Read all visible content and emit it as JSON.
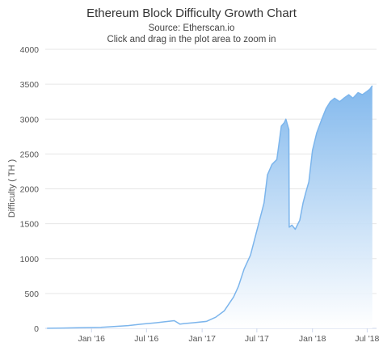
{
  "chart_data": {
    "type": "area",
    "title": "Ethereum Block Difficulty Growth Chart",
    "subtitle_source": "Source: Etherscan.io",
    "subtitle_hint": "Click and drag in the plot area to zoom in",
    "ylabel": "Difficulty ( TH )",
    "xlabel": "",
    "ylim": [
      0,
      4000
    ],
    "yticks": [
      "0",
      "500",
      "1000",
      "1500",
      "2000",
      "2500",
      "3000",
      "3500",
      "4000"
    ],
    "ytick_values": [
      0,
      500,
      1000,
      1500,
      2000,
      2500,
      3000,
      3500,
      4000
    ],
    "xlim": [
      "2015-08-01",
      "2018-08-01"
    ],
    "xticks": [
      "Jan '16",
      "Jul '16",
      "Jan '17",
      "Jul '17",
      "Jan '18",
      "Jul '18"
    ],
    "xtick_dates": [
      "2016-01-01",
      "2016-07-01",
      "2017-01-01",
      "2017-07-01",
      "2018-01-01",
      "2018-07-01"
    ],
    "grid": "horizontal",
    "legend": "none",
    "line_color": "#7cb5ec",
    "fill_top_color": "#7cb5ec",
    "fill_bottom_color": "#ffffff",
    "series": [
      {
        "x": [
          "2015-08-07",
          "2015-10-01",
          "2015-12-01",
          "2016-02-01",
          "2016-03-15",
          "2016-05-01",
          "2016-06-15",
          "2016-08-01",
          "2016-09-01",
          "2016-10-01",
          "2016-10-20",
          "2016-11-05",
          "2016-12-01",
          "2017-01-15",
          "2017-02-15",
          "2017-03-15",
          "2017-04-15",
          "2017-05-01",
          "2017-05-20",
          "2017-06-10",
          "2017-06-25",
          "2017-07-10",
          "2017-07-25",
          "2017-08-05",
          "2017-08-20",
          "2017-09-05",
          "2017-09-20",
          "2017-09-30",
          "2017-10-05",
          "2017-10-15",
          "2017-10-16",
          "2017-10-25",
          "2017-11-05",
          "2017-11-20",
          "2017-12-01",
          "2017-12-10",
          "2017-12-20",
          "2018-01-01",
          "2018-01-15",
          "2018-02-01",
          "2018-02-15",
          "2018-03-01",
          "2018-03-15",
          "2018-04-01",
          "2018-04-15",
          "2018-05-01",
          "2018-05-15",
          "2018-06-01",
          "2018-06-15",
          "2018-07-01",
          "2018-07-10",
          "2018-07-18"
        ],
        "y": [
          1,
          5,
          10,
          15,
          25,
          40,
          60,
          80,
          95,
          110,
          60,
          70,
          80,
          100,
          160,
          250,
          450,
          600,
          850,
          1050,
          1300,
          1550,
          1800,
          2200,
          2350,
          2420,
          2900,
          2950,
          3000,
          2850,
          1450,
          1480,
          1420,
          1550,
          1800,
          1950,
          2100,
          2550,
          2800,
          3000,
          3150,
          3250,
          3300,
          3250,
          3300,
          3350,
          3300,
          3380,
          3350,
          3400,
          3430,
          3480
        ]
      }
    ]
  }
}
